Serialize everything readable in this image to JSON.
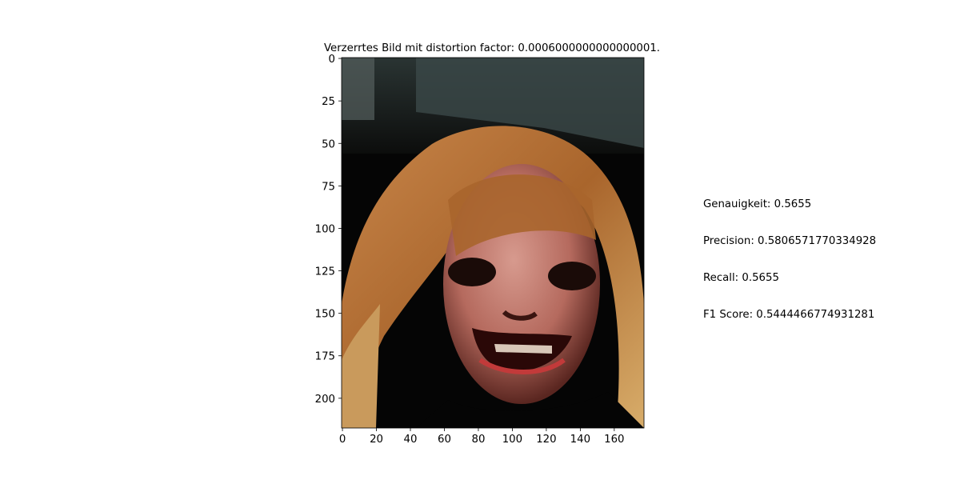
{
  "chart_data": {
    "type": "image",
    "title": "Verzerrtes Bild mit distortion factor: 0.0006000000000000001.",
    "image_width": 178,
    "image_height": 218,
    "xlim": [
      -0.5,
      177.5
    ],
    "ylim": [
      217.5,
      -0.5
    ],
    "x_ticks": [
      0,
      20,
      40,
      60,
      80,
      100,
      120,
      140,
      160
    ],
    "y_ticks": [
      0,
      25,
      50,
      75,
      100,
      125,
      150,
      175,
      200
    ],
    "image_content": "face-photo"
  },
  "metrics": [
    {
      "label": "Genauigkeit",
      "value": "0.5655",
      "text": "Genauigkeit: 0.5655"
    },
    {
      "label": "Precision",
      "value": "0.5806571770334928",
      "text": "Precision: 0.5806571770334928"
    },
    {
      "label": "Recall",
      "value": "0.5655",
      "text": "Recall: 0.5655"
    },
    {
      "label": "F1 Score",
      "value": "0.5444466774931281",
      "text": "F1 Score: 0.5444466774931281"
    }
  ]
}
